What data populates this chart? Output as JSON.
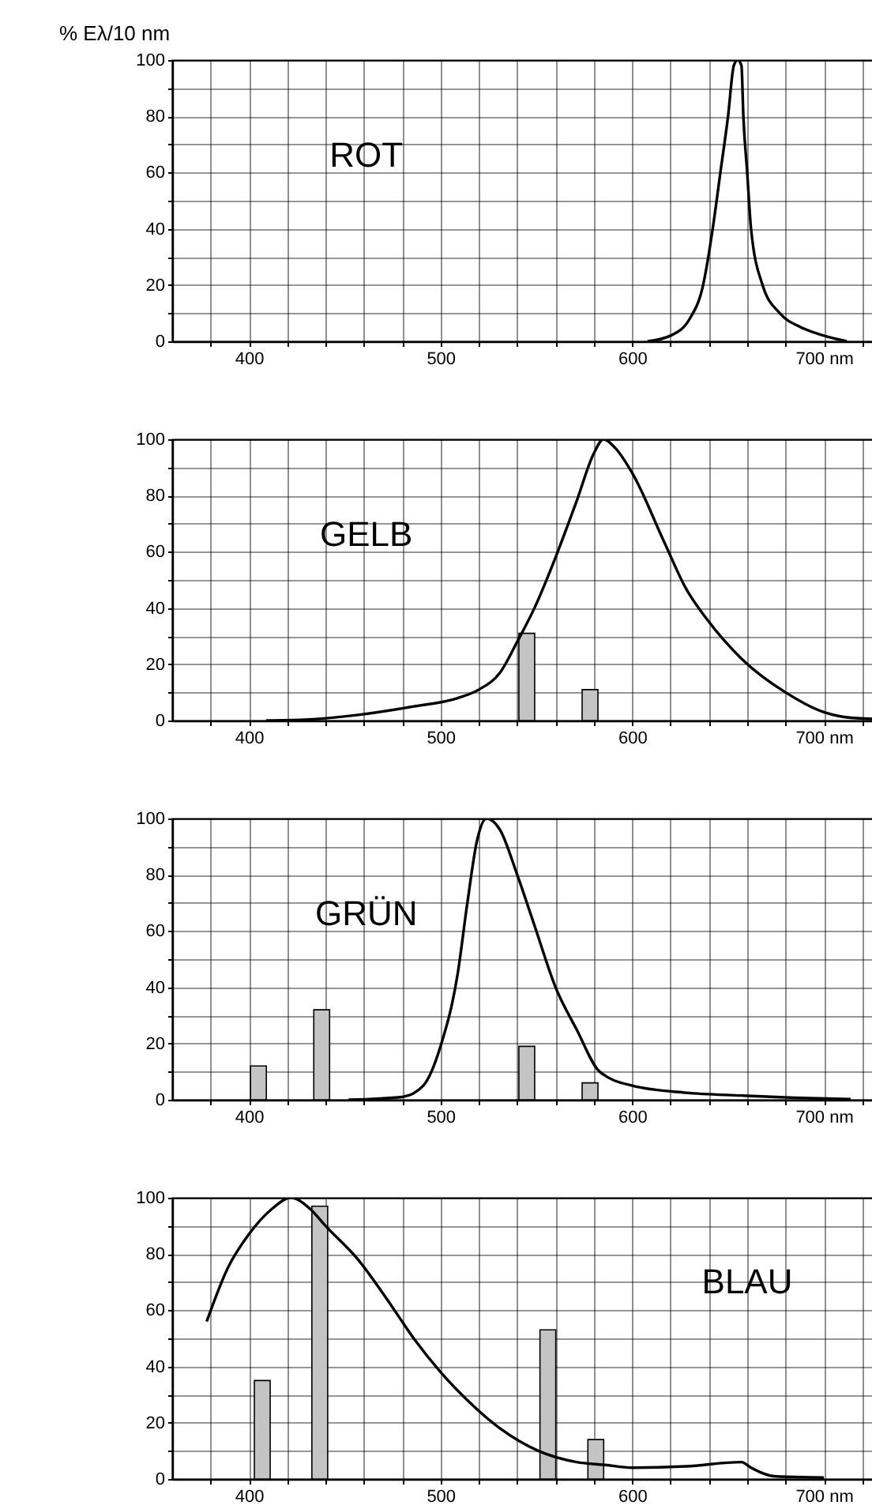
{
  "chart_data": [
    {
      "type": "line",
      "title": "ROT",
      "ylabel": "% Eλ/10 nm",
      "grid": true,
      "xlim": [
        360,
        735
      ],
      "ylim": [
        0,
        100
      ],
      "xticks": [
        {
          "value": 380,
          "label": null
        },
        400,
        {
          "value": 420,
          "label": null
        },
        {
          "value": 440,
          "label": null
        },
        {
          "value": 460,
          "label": null
        },
        {
          "value": 480,
          "label": null
        },
        500,
        {
          "value": 520,
          "label": null
        },
        {
          "value": 540,
          "label": null
        },
        {
          "value": 560,
          "label": null
        },
        {
          "value": 580,
          "label": null
        },
        600,
        {
          "value": 620,
          "label": null
        },
        {
          "value": 640,
          "label": null
        },
        {
          "value": 660,
          "label": null
        },
        {
          "value": 680,
          "label": null
        },
        {
          "value": 700,
          "label": "700 nm"
        },
        {
          "value": 720,
          "label": null
        }
      ],
      "yticks": [
        0,
        {
          "value": 10,
          "label": null
        },
        20,
        {
          "value": 30,
          "label": null
        },
        40,
        {
          "value": 50,
          "label": null
        },
        60,
        {
          "value": 70,
          "label": null
        },
        80,
        {
          "value": 90,
          "label": null
        },
        100
      ],
      "series": [
        {
          "color": "#000000",
          "x": [
            608,
            620,
            630,
            637,
            642,
            646,
            650,
            653,
            655,
            657,
            658,
            660,
            662,
            668,
            677,
            688,
            700,
            712
          ],
          "values": [
            0,
            2,
            8,
            20,
            40,
            60,
            80,
            98,
            100,
            98,
            80,
            60,
            40,
            20,
            10,
            5,
            2,
            0
          ]
        }
      ]
    },
    {
      "type": "line",
      "title": "GELB",
      "grid": true,
      "xlim": [
        360,
        735
      ],
      "ylim": [
        0,
        100
      ],
      "xticks": [
        {
          "value": 380,
          "label": null
        },
        400,
        {
          "value": 420,
          "label": null
        },
        {
          "value": 440,
          "label": null
        },
        {
          "value": 460,
          "label": null
        },
        {
          "value": 480,
          "label": null
        },
        500,
        {
          "value": 520,
          "label": null
        },
        {
          "value": 540,
          "label": null
        },
        {
          "value": 560,
          "label": null
        },
        {
          "value": 580,
          "label": null
        },
        600,
        {
          "value": 620,
          "label": null
        },
        {
          "value": 640,
          "label": null
        },
        {
          "value": 660,
          "label": null
        },
        {
          "value": 680,
          "label": null
        },
        {
          "value": 700,
          "label": "700 nm"
        },
        {
          "value": 720,
          "label": null
        }
      ],
      "yticks": [
        0,
        {
          "value": 10,
          "label": null
        },
        20,
        {
          "value": 30,
          "label": null
        },
        40,
        {
          "value": 50,
          "label": null
        },
        60,
        {
          "value": 70,
          "label": null
        },
        80,
        {
          "value": 90,
          "label": null
        },
        100
      ],
      "series": [
        {
          "type": "bar",
          "color": "#c4c4c4",
          "x": [
            545,
            578
          ],
          "values": [
            31,
            11
          ]
        },
        {
          "color": "#000000",
          "x": [
            409,
            429,
            457,
            486,
            509,
            520,
            531,
            540,
            549,
            560,
            571,
            580,
            585,
            591,
            600,
            617,
            628,
            639,
            657,
            680,
            700,
            714,
            731
          ],
          "values": [
            0,
            0.3,
            2,
            5,
            8,
            11,
            17,
            28,
            40,
            58,
            78,
            95,
            100,
            97,
            88,
            63,
            47,
            36,
            22,
            10,
            3,
            1,
            0.5
          ]
        }
      ]
    },
    {
      "type": "line",
      "title": "GRÜN",
      "grid": true,
      "xlim": [
        360,
        735
      ],
      "ylim": [
        0,
        100
      ],
      "xticks": [
        {
          "value": 380,
          "label": null
        },
        400,
        {
          "value": 420,
          "label": null
        },
        {
          "value": 440,
          "label": null
        },
        {
          "value": 460,
          "label": null
        },
        {
          "value": 480,
          "label": null
        },
        500,
        {
          "value": 520,
          "label": null
        },
        {
          "value": 540,
          "label": null
        },
        {
          "value": 560,
          "label": null
        },
        {
          "value": 580,
          "label": null
        },
        600,
        {
          "value": 620,
          "label": null
        },
        {
          "value": 640,
          "label": null
        },
        {
          "value": 660,
          "label": null
        },
        {
          "value": 680,
          "label": null
        },
        {
          "value": 700,
          "label": "700 nm"
        },
        {
          "value": 720,
          "label": null
        }
      ],
      "yticks": [
        0,
        {
          "value": 10,
          "label": null
        },
        20,
        {
          "value": 30,
          "label": null
        },
        40,
        {
          "value": 50,
          "label": null
        },
        60,
        {
          "value": 70,
          "label": null
        },
        80,
        {
          "value": 90,
          "label": null
        },
        100
      ],
      "series": [
        {
          "type": "bar",
          "color": "#c4c4c4",
          "x": [
            405,
            438,
            545,
            578
          ],
          "values": [
            12,
            32,
            19,
            6
          ]
        },
        {
          "color": "#000000",
          "x": [
            452,
            480,
            491,
            500,
            509,
            514,
            519,
            524,
            531,
            540,
            549,
            560,
            571,
            583,
            600,
            628,
            657,
            685,
            714
          ],
          "values": [
            0,
            1,
            5,
            19,
            45,
            70,
            92,
            100,
            96,
            80,
            62,
            40,
            25,
            10,
            5,
            2.5,
            1.5,
            0.7,
            0.2
          ]
        }
      ]
    },
    {
      "type": "line",
      "title": "BLAU",
      "grid": true,
      "xlim": [
        360,
        735
      ],
      "ylim": [
        0,
        100
      ],
      "xticks": [
        {
          "value": 380,
          "label": null
        },
        400,
        {
          "value": 420,
          "label": null
        },
        {
          "value": 440,
          "label": null
        },
        {
          "value": 460,
          "label": null
        },
        {
          "value": 480,
          "label": null
        },
        500,
        {
          "value": 520,
          "label": null
        },
        {
          "value": 540,
          "label": null
        },
        {
          "value": 560,
          "label": null
        },
        {
          "value": 580,
          "label": null
        },
        600,
        {
          "value": 620,
          "label": null
        },
        {
          "value": 640,
          "label": null
        },
        {
          "value": 660,
          "label": null
        },
        {
          "value": 680,
          "label": null
        },
        {
          "value": 700,
          "label": "700 nm"
        },
        {
          "value": 720,
          "label": null
        }
      ],
      "yticks": [
        0,
        {
          "value": 10,
          "label": null
        },
        20,
        {
          "value": 30,
          "label": null
        },
        40,
        {
          "value": 50,
          "label": null
        },
        60,
        {
          "value": 70,
          "label": null
        },
        80,
        {
          "value": 90,
          "label": null
        },
        100
      ],
      "series": [
        {
          "type": "bar",
          "color": "#c4c4c4",
          "x": [
            407,
            437,
            556,
            581
          ],
          "values": [
            35,
            97,
            53,
            14
          ]
        },
        {
          "color": "#000000",
          "x": [
            378,
            389,
            400,
            412,
            422,
            432,
            440,
            457,
            472,
            486,
            500,
            514,
            531,
            551,
            571,
            586,
            600,
            628,
            657,
            662,
            674,
            700
          ],
          "values": [
            56,
            75,
            87,
            96,
            100,
            96,
            90,
            78,
            64,
            50,
            38,
            28,
            18,
            10,
            6,
            5,
            4,
            4.5,
            6,
            4,
            1,
            0.5
          ]
        }
      ]
    }
  ]
}
